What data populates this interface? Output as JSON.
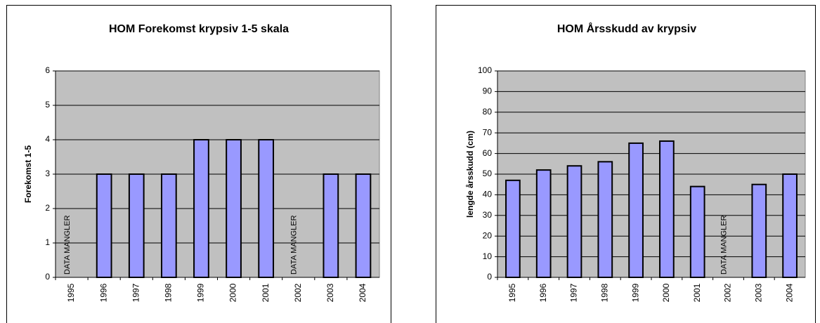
{
  "chart_data": [
    {
      "type": "bar",
      "title": "HOM Forekomst krypsiv 1-5 skala",
      "y_label": "Forekomst 1-5",
      "categories": [
        "1995",
        "1996",
        "1997",
        "1998",
        "1999",
        "2000",
        "2001",
        "2002",
        "2003",
        "2004"
      ],
      "values": [
        null,
        3,
        3,
        3,
        4,
        4,
        4,
        null,
        3,
        3
      ],
      "color": "#9999ff",
      "ylim": [
        0,
        6
      ],
      "yticks": [
        0,
        1,
        2,
        3,
        4,
        5,
        6
      ],
      "grid": true,
      "annotations": [
        "DATA MANGLER",
        "DATA MANGLER"
      ]
    },
    {
      "type": "bar",
      "title": "HOM Årsskudd av krypsiv",
      "y_label": "lengde årsskudd (cm)",
      "categories": [
        "1995",
        "1996",
        "1997",
        "1998",
        "1999",
        "2000",
        "2001",
        "2002",
        "2003",
        "2004"
      ],
      "values": [
        47,
        52,
        54,
        56,
        65,
        66,
        44,
        null,
        45,
        50
      ],
      "color": "#9999ff",
      "ylim": [
        0,
        100
      ],
      "yticks": [
        0,
        10,
        20,
        30,
        40,
        50,
        60,
        70,
        80,
        90,
        100
      ],
      "grid": true,
      "annotations": [
        "DATA MANGLER"
      ]
    }
  ]
}
